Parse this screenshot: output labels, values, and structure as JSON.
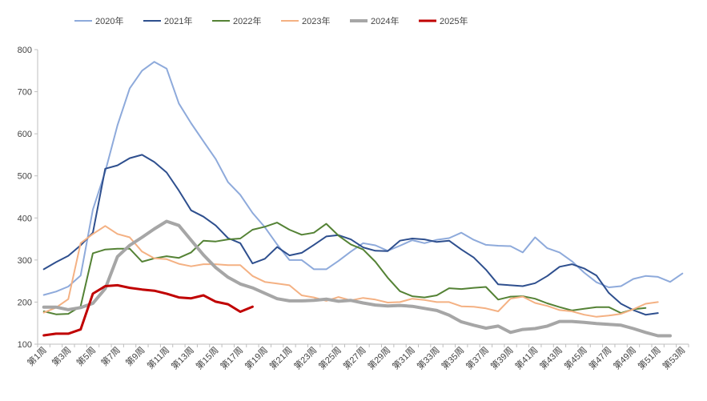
{
  "chart_data": {
    "type": "line",
    "title": "",
    "xlabel": "",
    "ylabel": "",
    "ylim": [
      100,
      800
    ],
    "yticks": [
      100,
      200,
      300,
      400,
      500,
      600,
      700,
      800
    ],
    "x_tick_labels": [
      "第1周",
      "第3周",
      "第5周",
      "第7周",
      "第9周",
      "第11周",
      "第13周",
      "第15周",
      "第17周",
      "第19周",
      "第21周",
      "第23周",
      "第25周",
      "第27周",
      "第29周",
      "第31周",
      "第33周",
      "第35周",
      "第37周",
      "第39周",
      "第41周",
      "第43周",
      "第45周",
      "第47周",
      "第49周",
      "第51周",
      "第53周"
    ],
    "x_count": 53,
    "grid": false,
    "legend_position": "top",
    "series": [
      {
        "name": "2020年",
        "color": "#8eaadb",
        "width": 2,
        "values": [
          217,
          225,
          237,
          263,
          420,
          510,
          620,
          708,
          750,
          771,
          755,
          672,
          625,
          582,
          540,
          485,
          455,
          412,
          378,
          337,
          300,
          300,
          278,
          278,
          298,
          320,
          340,
          335,
          322,
          334,
          347,
          340,
          348,
          352,
          365,
          348,
          336,
          334,
          333,
          318,
          354,
          328,
          318,
          297,
          270,
          247,
          235,
          238,
          255,
          262,
          260,
          248,
          268
        ]
      },
      {
        "name": "2021年",
        "color": "#2e4f8e",
        "width": 2,
        "values": [
          278,
          295,
          310,
          335,
          365,
          517,
          525,
          542,
          550,
          533,
          508,
          465,
          418,
          403,
          382,
          352,
          340,
          292,
          303,
          331,
          311,
          317,
          336,
          356,
          359,
          349,
          330,
          322,
          321,
          346,
          351,
          349,
          343,
          346,
          325,
          306,
          277,
          242,
          240,
          238,
          245,
          262,
          284,
          290,
          280,
          263,
          222,
          196,
          181,
          170,
          174
        ]
      },
      {
        "name": "2022年",
        "color": "#548235",
        "width": 2,
        "values": [
          178,
          171,
          172,
          190,
          316,
          325,
          327,
          327,
          296,
          304,
          309,
          305,
          318,
          346,
          344,
          349,
          351,
          372,
          379,
          389,
          372,
          360,
          365,
          386,
          358,
          337,
          325,
          296,
          258,
          226,
          214,
          211,
          216,
          233,
          231,
          234,
          236,
          206,
          213,
          214,
          208,
          197,
          188,
          180,
          184,
          188,
          188,
          174,
          183,
          186
        ]
      },
      {
        "name": "2023年",
        "color": "#f4b183",
        "width": 2,
        "values": [
          175,
          187,
          207,
          340,
          362,
          381,
          362,
          354,
          320,
          304,
          302,
          291,
          285,
          290,
          290,
          288,
          288,
          262,
          248,
          244,
          240,
          216,
          211,
          203,
          212,
          204,
          210,
          206,
          199,
          200,
          208,
          205,
          200,
          200,
          190,
          189,
          185,
          178,
          208,
          213,
          198,
          191,
          181,
          178,
          170,
          165,
          168,
          172,
          183,
          196,
          200
        ]
      },
      {
        "name": "2024年",
        "color": "#a6a6a6",
        "width": 4,
        "values": [
          188,
          188,
          182,
          187,
          197,
          232,
          308,
          335,
          354,
          374,
          392,
          382,
          347,
          312,
          282,
          259,
          243,
          234,
          221,
          208,
          203,
          203,
          204,
          207,
          202,
          204,
          198,
          193,
          191,
          192,
          190,
          185,
          180,
          169,
          153,
          145,
          138,
          143,
          128,
          135,
          137,
          143,
          154,
          154,
          152,
          149,
          147,
          145,
          137,
          128,
          120,
          120
        ]
      },
      {
        "name": "2025年",
        "color": "#c00000",
        "width": 3,
        "values": [
          121,
          125,
          125,
          135,
          220,
          238,
          240,
          234,
          230,
          227,
          220,
          211,
          209,
          216,
          201,
          195,
          177,
          189
        ]
      }
    ]
  }
}
